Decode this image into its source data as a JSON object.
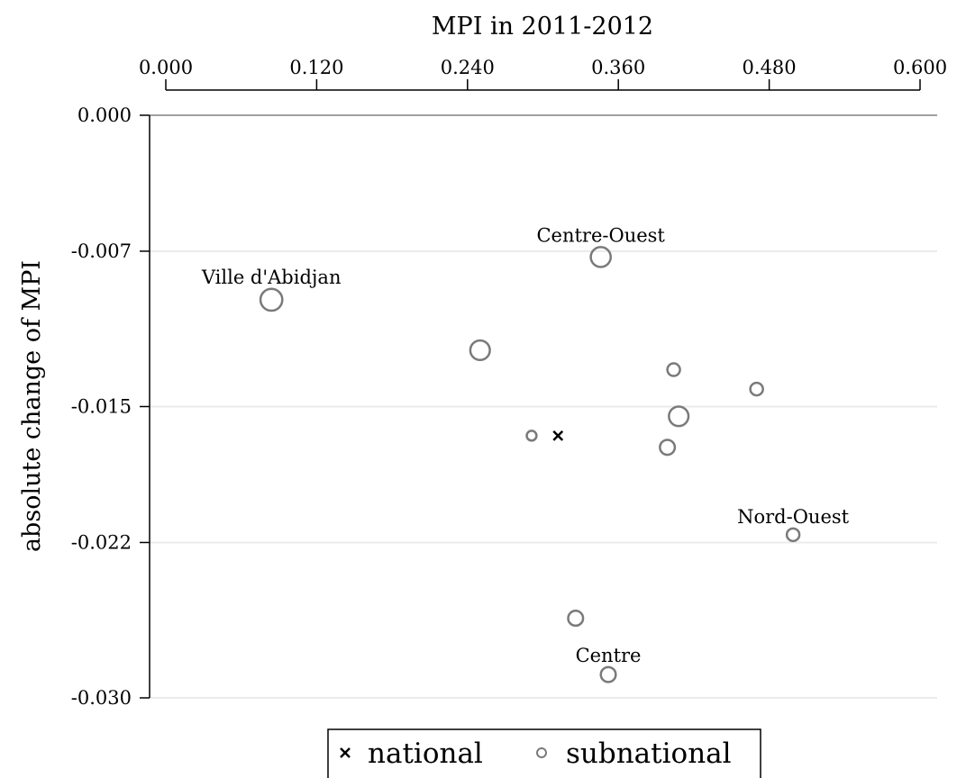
{
  "chart_data": {
    "type": "scatter",
    "title": "",
    "xlabel": "MPI in 2011-2012",
    "ylabel": "absolute change of MPI",
    "x_axis_position": "top",
    "xlim": [
      0.0,
      0.6
    ],
    "ylim": [
      -0.03,
      0.0
    ],
    "x_ticks": [
      "0.000",
      "0.120",
      "0.240",
      "0.360",
      "0.480",
      "0.600"
    ],
    "y_ticks": [
      "0.000",
      "-0.007",
      "-0.015",
      "-0.022",
      "-0.030"
    ],
    "grid": true,
    "zero_line": true,
    "legend_position": "bottom",
    "colors": {
      "marker": "#7a7a7a",
      "national": "#000000",
      "grid": "#ebebeb",
      "zero_line": "#808080"
    },
    "series": [
      {
        "name": "national",
        "marker": "x",
        "points": [
          {
            "x": 0.312,
            "y": -0.0165
          }
        ]
      },
      {
        "name": "subnational",
        "marker": "circle",
        "points": [
          {
            "x": 0.084,
            "y": -0.0095,
            "size": 3.0,
            "label": "Ville d'Abidjan"
          },
          {
            "x": 0.346,
            "y": -0.0073,
            "size": 2.5,
            "label": "Centre-Ouest"
          },
          {
            "x": 0.25,
            "y": -0.0121,
            "size": 2.4
          },
          {
            "x": 0.404,
            "y": -0.0131,
            "size": 1.0
          },
          {
            "x": 0.47,
            "y": -0.0141,
            "size": 1.0
          },
          {
            "x": 0.408,
            "y": -0.0155,
            "size": 2.4
          },
          {
            "x": 0.291,
            "y": -0.0165,
            "size": 0.6
          },
          {
            "x": 0.399,
            "y": -0.0171,
            "size": 1.4
          },
          {
            "x": 0.499,
            "y": -0.0216,
            "size": 1.0,
            "label": "Nord-Ouest"
          },
          {
            "x": 0.326,
            "y": -0.0259,
            "size": 1.4
          },
          {
            "x": 0.352,
            "y": -0.0288,
            "size": 1.4,
            "label": "Centre"
          }
        ]
      }
    ]
  }
}
